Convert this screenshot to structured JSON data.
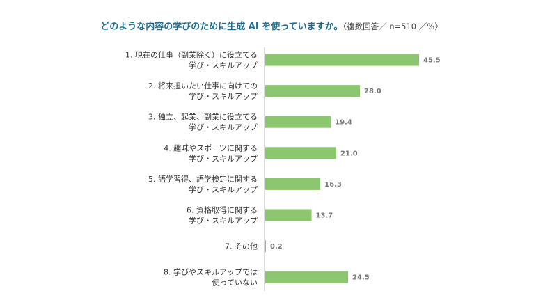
{
  "chart_data": {
    "type": "bar",
    "orientation": "horizontal",
    "title": "どのような内容の学びのために生成 AI を使っていますか。",
    "subtitle": "〈複数回答／ n=510 ／%〉",
    "categories": [
      [
        "1. 現在の仕事（副業除く）に役立てる",
        "学び・スキルアップ"
      ],
      [
        "2. 将来担いたい仕事に向けての",
        "学び・スキルアップ"
      ],
      [
        "3. 独立、起業、副業に役立てる",
        "学び・スキルアップ"
      ],
      [
        "4. 趣味やスポーツに関する",
        "学び・スキルアップ"
      ],
      [
        "5. 語学習得、語学検定に関する",
        "学び・スキルアップ"
      ],
      [
        "6. 資格取得に関する",
        "学び・スキルアップ"
      ],
      [
        "7. その他"
      ],
      [
        "8. 学びやスキルアップでは",
        "使っていない"
      ]
    ],
    "values": [
      45.5,
      28.0,
      19.4,
      21.0,
      16.3,
      13.7,
      0.2,
      24.5
    ],
    "value_labels": [
      "45.5",
      "28.0",
      "19.4",
      "21.0",
      "16.3",
      "13.7",
      "0.2",
      "24.5"
    ],
    "xlim": [
      0,
      50
    ],
    "grid": false,
    "legend": "none",
    "bar_color": "#8cc66e",
    "axis_color": "#bbbbbb"
  }
}
